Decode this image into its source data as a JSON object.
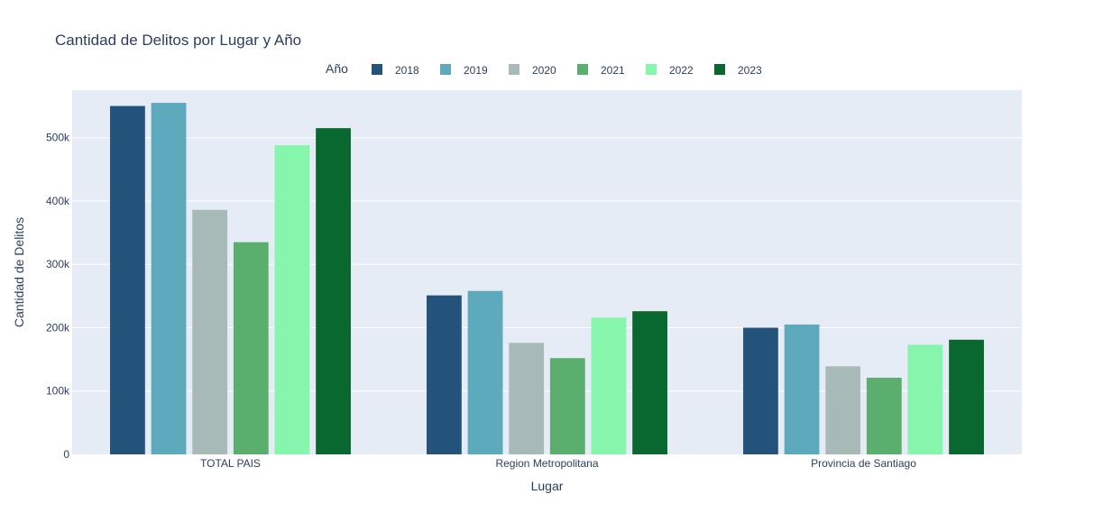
{
  "chart_data": {
    "type": "bar",
    "title": "Cantidad de Delitos por Lugar y Año",
    "xlabel": "Lugar",
    "ylabel": "Cantidad de Delitos",
    "legend_title": "Año",
    "legend_position": "top-center",
    "grid": true,
    "ylim": [
      0,
      575000
    ],
    "y_ticks": [
      {
        "value": 0,
        "label": "0"
      },
      {
        "value": 100000,
        "label": "100k"
      },
      {
        "value": 200000,
        "label": "200k"
      },
      {
        "value": 300000,
        "label": "300k"
      },
      {
        "value": 400000,
        "label": "400k"
      },
      {
        "value": 500000,
        "label": "500k"
      }
    ],
    "categories": [
      "TOTAL PAIS",
      "Region Metropolitana",
      "Provincia de Santiago"
    ],
    "series": [
      {
        "name": "2018",
        "color": "#23527a",
        "values": [
          550000,
          251000,
          200000
        ]
      },
      {
        "name": "2019",
        "color": "#5eaabd",
        "values": [
          555000,
          258000,
          205000
        ]
      },
      {
        "name": "2020",
        "color": "#a7bab7",
        "values": [
          386000,
          176000,
          139000
        ]
      },
      {
        "name": "2021",
        "color": "#5aaf6f",
        "values": [
          335000,
          152000,
          121000
        ]
      },
      {
        "name": "2022",
        "color": "#85f6ab",
        "values": [
          488000,
          216000,
          173000
        ]
      },
      {
        "name": "2023",
        "color": "#08682f",
        "values": [
          515000,
          226000,
          181000
        ]
      }
    ]
  },
  "colors": {
    "plot_background": "#e5ecf6",
    "grid": "#ffffff",
    "text": "#2a3f5f"
  }
}
